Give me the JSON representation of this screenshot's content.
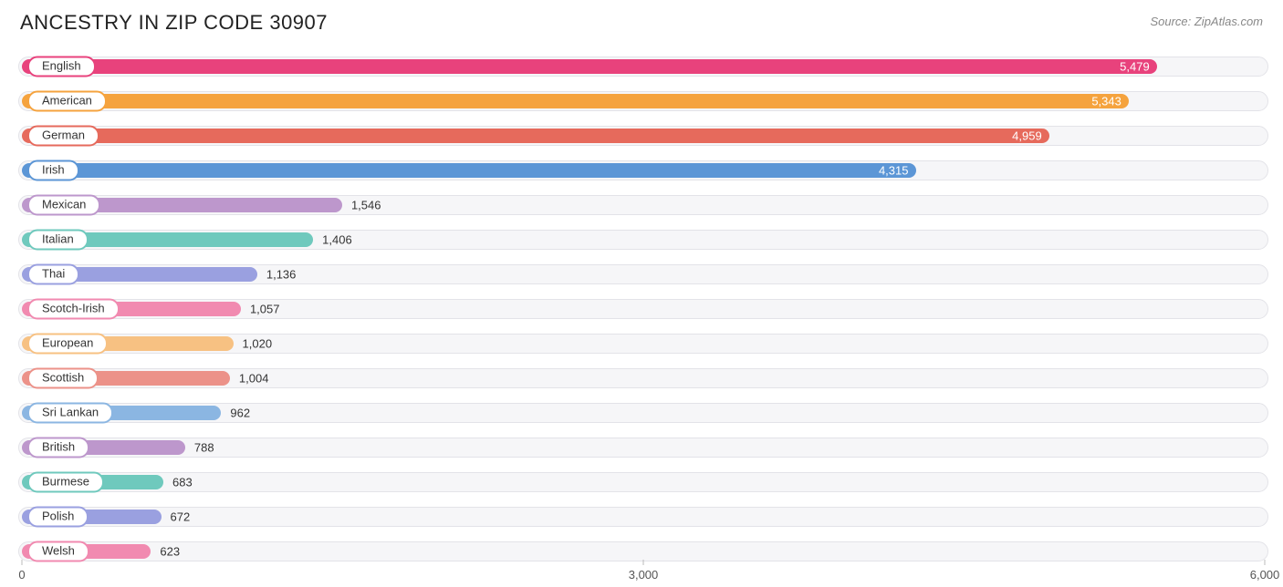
{
  "title": "ANCESTRY IN ZIP CODE 30907",
  "source": "Source: ZipAtlas.com",
  "chart": {
    "type": "bar-horizontal",
    "x_max": 6000,
    "x_ticks": [
      {
        "value": 0,
        "label": "0"
      },
      {
        "value": 3000,
        "label": "3,000"
      },
      {
        "value": 6000,
        "label": "6,000"
      }
    ],
    "track_bg": "#f6f6f8",
    "track_border": "#e3e3e8",
    "pill_bg": "#ffffff",
    "value_inside_threshold": 3800,
    "bars": [
      {
        "label": "English",
        "value": 5479,
        "value_label": "5,479",
        "color": "#e8427c"
      },
      {
        "label": "American",
        "value": 5343,
        "value_label": "5,343",
        "color": "#f5a33e"
      },
      {
        "label": "German",
        "value": 4959,
        "value_label": "4,959",
        "color": "#e66a5c"
      },
      {
        "label": "Irish",
        "value": 4315,
        "value_label": "4,315",
        "color": "#5c96d6"
      },
      {
        "label": "Mexican",
        "value": 1546,
        "value_label": "1,546",
        "color": "#bd97cc"
      },
      {
        "label": "Italian",
        "value": 1406,
        "value_label": "1,406",
        "color": "#6fc9bd"
      },
      {
        "label": "Thai",
        "value": 1136,
        "value_label": "1,136",
        "color": "#9aa0e0"
      },
      {
        "label": "Scotch-Irish",
        "value": 1057,
        "value_label": "1,057",
        "color": "#f18ab0"
      },
      {
        "label": "European",
        "value": 1020,
        "value_label": "1,020",
        "color": "#f7c182"
      },
      {
        "label": "Scottish",
        "value": 1004,
        "value_label": "1,004",
        "color": "#ec9289"
      },
      {
        "label": "Sri Lankan",
        "value": 962,
        "value_label": "962",
        "color": "#8bb6e2"
      },
      {
        "label": "British",
        "value": 788,
        "value_label": "788",
        "color": "#bd97cc"
      },
      {
        "label": "Burmese",
        "value": 683,
        "value_label": "683",
        "color": "#6fc9bd"
      },
      {
        "label": "Polish",
        "value": 672,
        "value_label": "672",
        "color": "#9aa0e0"
      },
      {
        "label": "Welsh",
        "value": 623,
        "value_label": "623",
        "color": "#f18ab0"
      }
    ]
  }
}
